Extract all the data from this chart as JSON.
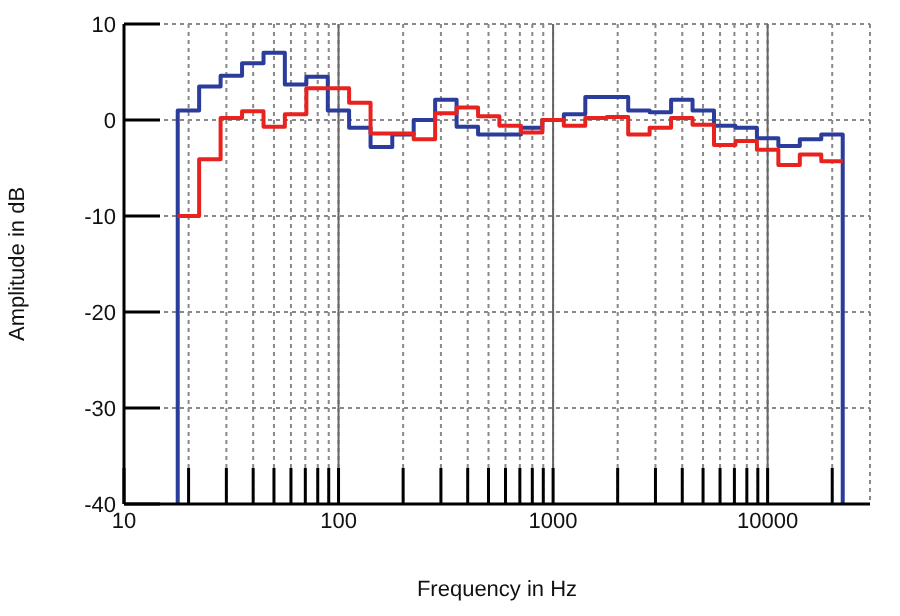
{
  "chart_data": {
    "type": "step",
    "xlabel": "Frequency in Hz",
    "ylabel": "Amplitude in dB",
    "log": "x",
    "grid": true,
    "legend": false,
    "xlim": [
      10,
      30000
    ],
    "ylim": [
      -40,
      10
    ],
    "xticks": [
      10,
      {
        "value": 20,
        "label": null
      },
      {
        "value": 30,
        "label": null
      },
      {
        "value": 40,
        "label": null
      },
      {
        "value": 50,
        "label": null
      },
      {
        "value": 60,
        "label": null
      },
      {
        "value": 70,
        "label": null
      },
      {
        "value": 80,
        "label": null
      },
      {
        "value": 90,
        "label": null
      },
      100,
      {
        "value": 200,
        "label": null
      },
      {
        "value": 300,
        "label": null
      },
      {
        "value": 400,
        "label": null
      },
      {
        "value": 500,
        "label": null
      },
      {
        "value": 600,
        "label": null
      },
      {
        "value": 700,
        "label": null
      },
      {
        "value": 800,
        "label": null
      },
      {
        "value": 900,
        "label": null
      },
      1000,
      {
        "value": 2000,
        "label": null
      },
      {
        "value": 3000,
        "label": null
      },
      {
        "value": 4000,
        "label": null
      },
      {
        "value": 5000,
        "label": null
      },
      {
        "value": 6000,
        "label": null
      },
      {
        "value": 7000,
        "label": null
      },
      {
        "value": 8000,
        "label": null
      },
      {
        "value": 9000,
        "label": null
      },
      10000,
      {
        "value": 20000,
        "label": null
      }
    ],
    "yticks": [
      10,
      0,
      -10,
      -20,
      -30,
      -40
    ],
    "series": [
      {
        "color": "#2b3c9b",
        "x": [
          17.8,
          17.8,
          22.4,
          28.2,
          35.5,
          44.7,
          56.2,
          70.8,
          89.1,
          112,
          141,
          178,
          224,
          282,
          355,
          447,
          562,
          708,
          891,
          1122,
          1413,
          1778,
          2239,
          2818,
          3548,
          4467,
          5623,
          7079,
          8913,
          11220,
          14125,
          17783,
          22387
        ],
        "values": [
          -40,
          1.0,
          3.5,
          4.6,
          5.9,
          7.0,
          3.7,
          4.5,
          1.0,
          -0.8,
          -2.8,
          -1.5,
          0,
          2.1,
          -0.7,
          -1.5,
          -1.5,
          -0.8,
          0,
          0.6,
          2.4,
          2.4,
          1.0,
          0.8,
          2.1,
          1.0,
          -0.6,
          -0.8,
          -1.9,
          -2.7,
          -2.0,
          -1.5,
          -40
        ]
      },
      {
        "color": "#e8231f",
        "x": [
          17.8,
          22.4,
          28.2,
          35.5,
          44.7,
          56.2,
          70.8,
          89.1,
          112,
          141,
          178,
          224,
          282,
          355,
          447,
          562,
          708,
          891,
          1122,
          1413,
          1778,
          2239,
          2818,
          3548,
          4467,
          5623,
          7079,
          8913,
          11220,
          14125,
          17783,
          22387
        ],
        "values": [
          -10,
          -4.1,
          0.2,
          0.9,
          -0.7,
          0.6,
          3.3,
          3.3,
          1.8,
          -1.4,
          -1.4,
          -2.0,
          0.7,
          1.3,
          0.4,
          -0.6,
          -1.3,
          0,
          -0.6,
          0.2,
          0.3,
          -1.5,
          -0.8,
          0.2,
          -0.5,
          -2.6,
          -2.2,
          -3.1,
          -4.7,
          -3.6,
          -4.3,
          -4.3
        ]
      }
    ]
  }
}
